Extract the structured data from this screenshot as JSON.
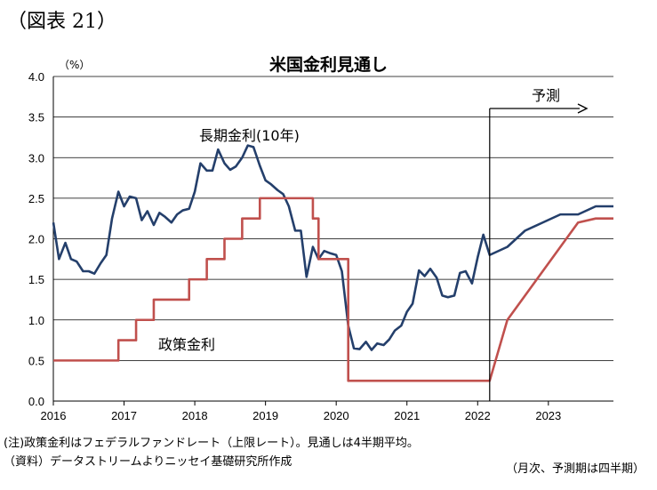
{
  "figure_label": "（図表 21）",
  "notes": {
    "note1": "(注)政策金利はフェデラルファンドレート（上限レート）。見通しは4半期平均。",
    "note2": "（資料）データストリームよりニッセイ基礎研究所作成",
    "note3": "（月次、予測期は四半期）"
  },
  "chart_data": {
    "type": "line",
    "title": "米国金利見通し",
    "unit_label": "（%）",
    "ylim": [
      0,
      4.0
    ],
    "yticks": [
      "0.0",
      "0.5",
      "1.0",
      "1.5",
      "2.0",
      "2.5",
      "3.0",
      "3.5",
      "4.0"
    ],
    "xlim": [
      2016.0,
      2023.92
    ],
    "xticks": [
      "2016",
      "2017",
      "2018",
      "2019",
      "2020",
      "2021",
      "2022",
      "2023"
    ],
    "grid": "horizontal",
    "forecast_start": 2022.17,
    "forecast_label": "予測",
    "series": [
      {
        "name": "長期金利(10年)",
        "color": "#243f6b",
        "x": [
          2016.0,
          2016.08,
          2016.17,
          2016.25,
          2016.33,
          2016.42,
          2016.5,
          2016.58,
          2016.67,
          2016.75,
          2016.83,
          2016.92,
          2017.0,
          2017.08,
          2017.17,
          2017.25,
          2017.33,
          2017.42,
          2017.5,
          2017.58,
          2017.67,
          2017.75,
          2017.83,
          2017.92,
          2018.0,
          2018.08,
          2018.17,
          2018.25,
          2018.33,
          2018.42,
          2018.5,
          2018.58,
          2018.67,
          2018.75,
          2018.83,
          2018.92,
          2019.0,
          2019.08,
          2019.17,
          2019.25,
          2019.33,
          2019.42,
          2019.5,
          2019.58,
          2019.67,
          2019.75,
          2019.83,
          2019.92,
          2020.0,
          2020.08,
          2020.17,
          2020.25,
          2020.33,
          2020.42,
          2020.5,
          2020.58,
          2020.67,
          2020.75,
          2020.83,
          2020.92,
          2021.0,
          2021.08,
          2021.17,
          2021.25,
          2021.33,
          2021.42,
          2021.5,
          2021.58,
          2021.67,
          2021.75,
          2021.83,
          2021.92,
          2022.0,
          2022.08,
          2022.17,
          2022.42,
          2022.67,
          2022.92,
          2023.17,
          2023.42,
          2023.67,
          2023.92
        ],
        "values": [
          2.2,
          1.75,
          1.95,
          1.75,
          1.72,
          1.6,
          1.6,
          1.57,
          1.7,
          1.8,
          2.25,
          2.58,
          2.4,
          2.52,
          2.5,
          2.23,
          2.34,
          2.17,
          2.32,
          2.27,
          2.2,
          2.3,
          2.35,
          2.37,
          2.58,
          2.93,
          2.84,
          2.84,
          3.1,
          2.93,
          2.85,
          2.89,
          3.0,
          3.15,
          3.13,
          2.9,
          2.72,
          2.67,
          2.6,
          2.55,
          2.4,
          2.1,
          2.1,
          1.53,
          1.9,
          1.75,
          1.85,
          1.82,
          1.8,
          1.6,
          0.93,
          0.65,
          0.64,
          0.73,
          0.63,
          0.71,
          0.69,
          0.76,
          0.87,
          0.93,
          1.1,
          1.2,
          1.61,
          1.54,
          1.63,
          1.52,
          1.3,
          1.28,
          1.3,
          1.58,
          1.6,
          1.45,
          1.77,
          2.05,
          1.8,
          1.9,
          2.1,
          2.2,
          2.3,
          2.3,
          2.4,
          2.4
        ],
        "label": "長期金利(10年)"
      },
      {
        "name": "政策金利",
        "color": "#c0504d",
        "step": true,
        "x": [
          2016.0,
          2016.92,
          2017.17,
          2017.42,
          2017.92,
          2018.17,
          2018.42,
          2018.67,
          2018.92,
          2019.5,
          2019.67,
          2019.75,
          2020.12,
          2020.17,
          2022.17,
          2022.42,
          2022.67,
          2022.92,
          2023.17,
          2023.42,
          2023.67,
          2023.92
        ],
        "values": [
          0.5,
          0.75,
          1.0,
          1.25,
          1.5,
          1.75,
          2.0,
          2.25,
          2.5,
          2.5,
          2.25,
          1.75,
          1.75,
          0.25,
          0.25,
          1.0,
          1.3,
          1.6,
          1.9,
          2.2,
          2.25,
          2.25
        ],
        "step_until": 2022.17,
        "label": "政策金利"
      }
    ]
  }
}
